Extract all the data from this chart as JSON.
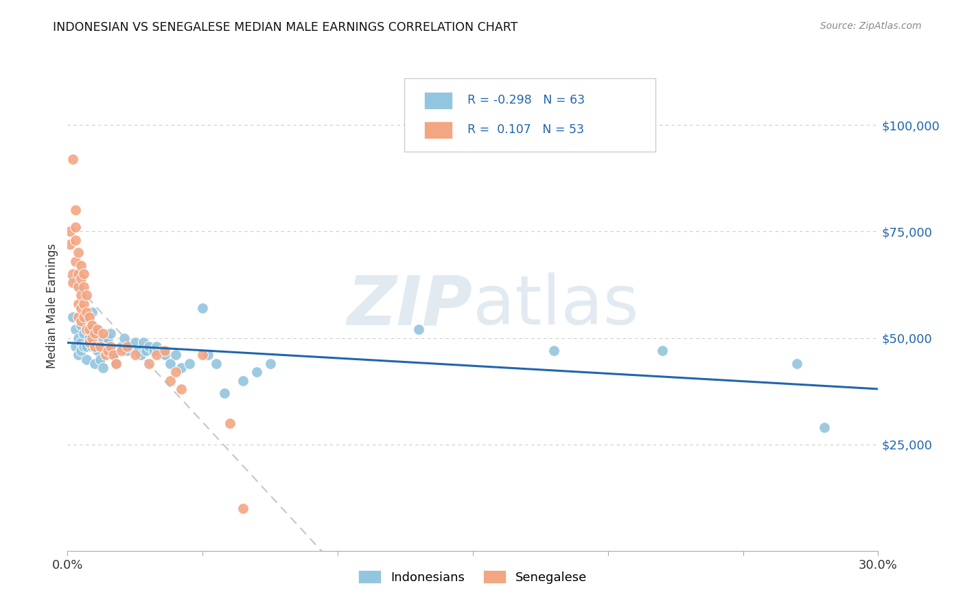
{
  "title": "INDONESIAN VS SENEGALESE MEDIAN MALE EARNINGS CORRELATION CHART",
  "source": "Source: ZipAtlas.com",
  "ylabel": "Median Male Earnings",
  "xlim": [
    0.0,
    0.3
  ],
  "ylim": [
    0,
    115000
  ],
  "yticks": [
    25000,
    50000,
    75000,
    100000
  ],
  "ytick_labels": [
    "$25,000",
    "$50,000",
    "$75,000",
    "$100,000"
  ],
  "xticks": [
    0.0,
    0.05,
    0.1,
    0.15,
    0.2,
    0.25,
    0.3
  ],
  "xtick_labels": [
    "0.0%",
    "",
    "",
    "",
    "",
    "",
    "30.0%"
  ],
  "legend_r_indonesian": "-0.298",
  "legend_n_indonesian": "63",
  "legend_r_senegalese": "0.107",
  "legend_n_senegalese": "53",
  "indonesian_color": "#92c5de",
  "senegalese_color": "#f4a582",
  "indonesian_line_color": "#2166ac",
  "senegalese_line_color": "#bbbbbb",
  "watermark_color": "#d0dce8",
  "background_color": "#ffffff",
  "indonesian_x": [
    0.002,
    0.003,
    0.003,
    0.004,
    0.004,
    0.005,
    0.005,
    0.005,
    0.006,
    0.006,
    0.006,
    0.007,
    0.007,
    0.007,
    0.008,
    0.008,
    0.009,
    0.009,
    0.01,
    0.01,
    0.01,
    0.011,
    0.011,
    0.012,
    0.012,
    0.013,
    0.013,
    0.014,
    0.015,
    0.015,
    0.016,
    0.017,
    0.018,
    0.02,
    0.021,
    0.022,
    0.023,
    0.025,
    0.026,
    0.027,
    0.028,
    0.029,
    0.03,
    0.032,
    0.033,
    0.035,
    0.036,
    0.038,
    0.04,
    0.042,
    0.045,
    0.05,
    0.052,
    0.055,
    0.058,
    0.065,
    0.07,
    0.075,
    0.13,
    0.18,
    0.22,
    0.27,
    0.28
  ],
  "indonesian_y": [
    55000,
    52000,
    48000,
    50000,
    46000,
    53000,
    49000,
    47000,
    55000,
    51000,
    48000,
    52000,
    48000,
    45000,
    54000,
    50000,
    56000,
    48000,
    52000,
    48000,
    44000,
    50000,
    47000,
    49000,
    45000,
    50000,
    43000,
    48000,
    50000,
    47000,
    51000,
    46000,
    44000,
    48000,
    50000,
    47000,
    48000,
    49000,
    47000,
    46000,
    49000,
    47000,
    48000,
    47000,
    48000,
    47000,
    46000,
    44000,
    46000,
    43000,
    44000,
    57000,
    46000,
    44000,
    37000,
    40000,
    42000,
    44000,
    52000,
    47000,
    47000,
    44000,
    29000
  ],
  "senegalese_x": [
    0.001,
    0.001,
    0.002,
    0.002,
    0.002,
    0.003,
    0.003,
    0.003,
    0.003,
    0.004,
    0.004,
    0.004,
    0.004,
    0.004,
    0.005,
    0.005,
    0.005,
    0.005,
    0.005,
    0.006,
    0.006,
    0.006,
    0.006,
    0.007,
    0.007,
    0.007,
    0.008,
    0.008,
    0.008,
    0.009,
    0.009,
    0.01,
    0.01,
    0.011,
    0.012,
    0.013,
    0.014,
    0.015,
    0.016,
    0.017,
    0.018,
    0.02,
    0.022,
    0.025,
    0.03,
    0.033,
    0.036,
    0.038,
    0.04,
    0.042,
    0.05,
    0.06,
    0.065
  ],
  "senegalese_y": [
    75000,
    72000,
    92000,
    65000,
    63000,
    80000,
    76000,
    73000,
    68000,
    70000,
    65000,
    62000,
    58000,
    55000,
    67000,
    64000,
    60000,
    57000,
    54000,
    65000,
    62000,
    58000,
    55000,
    60000,
    56000,
    52000,
    55000,
    52000,
    49000,
    53000,
    50000,
    51000,
    48000,
    52000,
    48000,
    51000,
    46000,
    47000,
    48000,
    46000,
    44000,
    47000,
    48000,
    46000,
    44000,
    46000,
    47000,
    40000,
    42000,
    38000,
    46000,
    30000,
    10000
  ]
}
